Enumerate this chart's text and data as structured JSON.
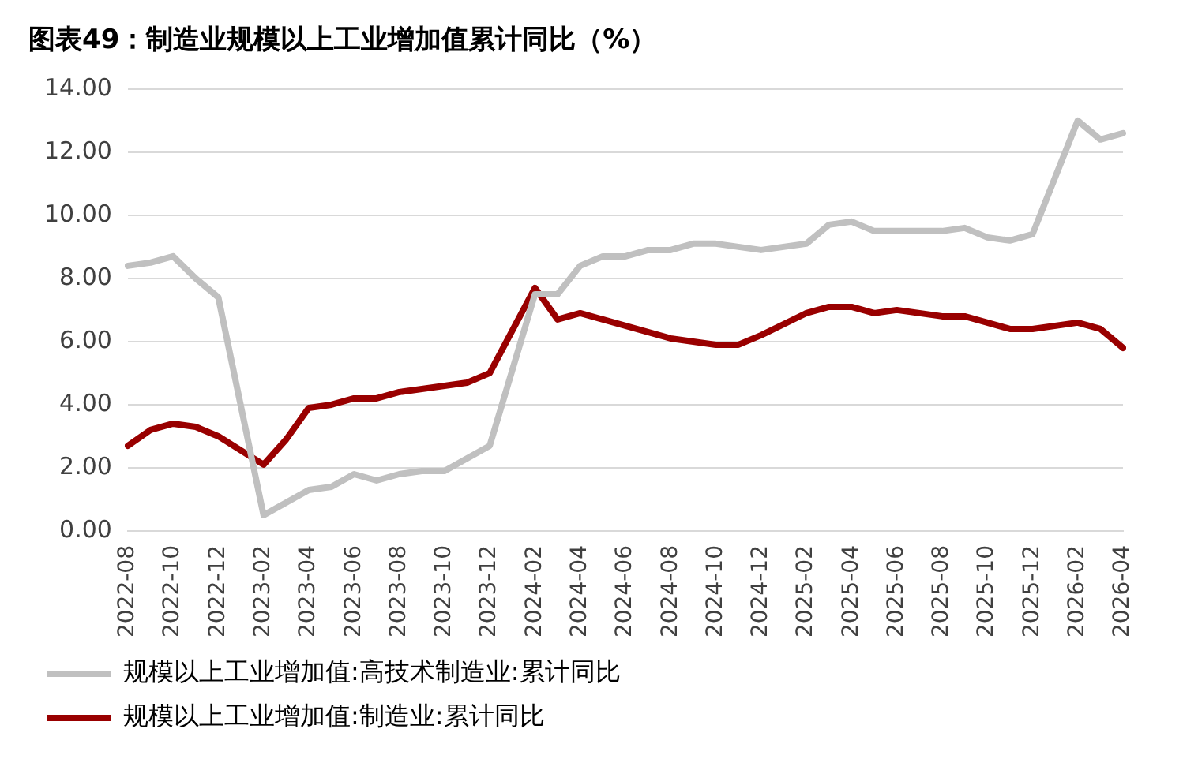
{
  "chart_data": {
    "type": "line",
    "title": "图表49：制造业规模以上工业增加值累计同比（%）",
    "categories": [
      "2022-08",
      null,
      "2022-10",
      null,
      "2022-12",
      null,
      "2023-02",
      null,
      "2023-04",
      null,
      "2023-06",
      null,
      "2023-08",
      null,
      "2023-10",
      null,
      "2023-12",
      null,
      "2024-02",
      null,
      "2024-04",
      null,
      "2024-06",
      null,
      "2024-08",
      null,
      "2024-10",
      null,
      "2024-12",
      null,
      "2025-02",
      null,
      "2025-04",
      null,
      "2025-06",
      null,
      "2025-08",
      null,
      "2025-10",
      null,
      "2025-12",
      null,
      "2026-02",
      null,
      "2026-04"
    ],
    "series": [
      {
        "name": "规模以上工业增加值:高技术制造业:累计同比",
        "color": "#c0c0c0",
        "values": [
          8.4,
          8.5,
          8.7,
          8.0,
          7.4,
          null,
          0.5,
          0.9,
          1.3,
          1.4,
          1.8,
          1.6,
          1.8,
          1.9,
          1.9,
          2.3,
          2.7,
          null,
          7.5,
          7.5,
          8.4,
          8.7,
          8.7,
          8.9,
          8.9,
          9.1,
          9.1,
          9.0,
          8.9,
          null,
          9.1,
          9.7,
          9.8,
          9.5,
          9.5,
          9.5,
          9.5,
          9.6,
          9.3,
          9.2,
          9.4,
          null,
          13.0,
          12.4,
          12.6
        ]
      },
      {
        "name": "规模以上工业增加值:制造业:累计同比",
        "color": "#990000",
        "values": [
          2.7,
          3.2,
          3.4,
          3.3,
          3.0,
          null,
          2.1,
          2.9,
          3.9,
          4.0,
          4.2,
          4.2,
          4.4,
          4.5,
          4.6,
          4.7,
          5.0,
          null,
          7.7,
          6.7,
          6.9,
          6.7,
          6.5,
          6.3,
          6.1,
          6.0,
          5.9,
          5.9,
          6.2,
          null,
          6.9,
          7.1,
          7.1,
          6.9,
          7.0,
          6.9,
          6.8,
          6.8,
          6.6,
          6.4,
          6.4,
          null,
          6.6,
          6.4,
          5.8
        ]
      }
    ],
    "ylim": [
      0,
      14
    ],
    "yticks": [
      {
        "value": 0,
        "label": "0.00"
      },
      {
        "value": 2,
        "label": "2.00"
      },
      {
        "value": 4,
        "label": "4.00"
      },
      {
        "value": 6,
        "label": "6.00"
      },
      {
        "value": 8,
        "label": "8.00"
      },
      {
        "value": 10,
        "label": "10.00"
      },
      {
        "value": 12,
        "label": "12.00"
      },
      {
        "value": 14,
        "label": "14.00"
      }
    ],
    "grid": "y",
    "legend": "bottom",
    "marker": "none",
    "line_style": "solid"
  }
}
